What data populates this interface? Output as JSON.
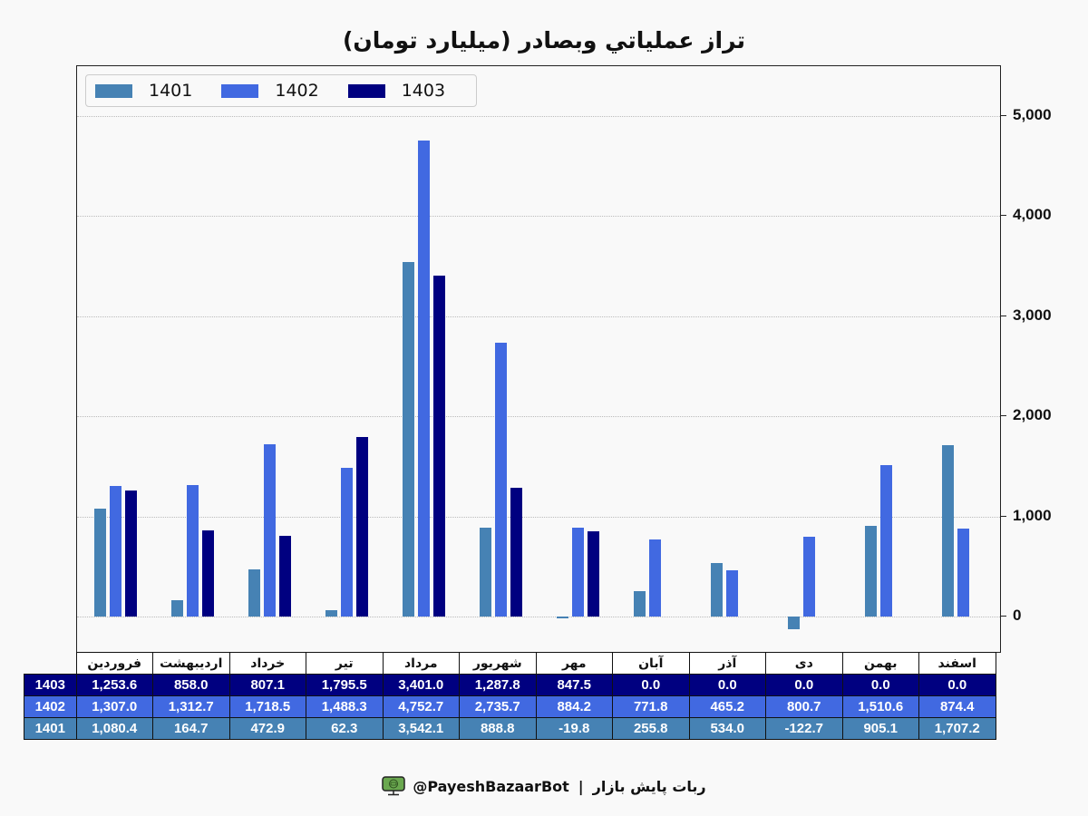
{
  "title": "تراز عملياتي وبصادر (ميليارد تومان)",
  "colors": {
    "1401": "#4682b4",
    "1402": "#4169e1",
    "1403": "#000080"
  },
  "legend": [
    {
      "label": "1401",
      "color": "#4682b4"
    },
    {
      "label": "1402",
      "color": "#4169e1"
    },
    {
      "label": "1403",
      "color": "#000080"
    }
  ],
  "yaxis": {
    "ticks": [
      "0",
      "1,000",
      "2,000",
      "3,000",
      "4,000",
      "5,000"
    ]
  },
  "table": {
    "months": [
      "فروردین",
      "اردیبهشت",
      "خرداد",
      "تیر",
      "مرداد",
      "شهریور",
      "مهر",
      "آبان",
      "آذر",
      "دی",
      "بهمن",
      "اسفند"
    ],
    "rows": [
      {
        "year": "1403",
        "values": [
          "1,253.6",
          "858.0",
          "807.1",
          "1,795.5",
          "3,401.0",
          "1,287.8",
          "847.5",
          "0.0",
          "0.0",
          "0.0",
          "0.0",
          "0.0"
        ]
      },
      {
        "year": "1402",
        "values": [
          "1,307.0",
          "1,312.7",
          "1,718.5",
          "1,488.3",
          "4,752.7",
          "2,735.7",
          "884.2",
          "771.8",
          "465.2",
          "800.7",
          "1,510.6",
          "874.4"
        ]
      },
      {
        "year": "1401",
        "values": [
          "1,080.4",
          "164.7",
          "472.9",
          "62.3",
          "3,542.1",
          "888.8",
          "-19.8",
          "255.8",
          "534.0",
          "-122.7",
          "905.1",
          "1,707.2"
        ]
      }
    ]
  },
  "footer": {
    "bot_name": "ربات پایش بازار",
    "separator": "|",
    "handle": "@PayeshBazaarBot",
    "icon": "monitor-icon"
  },
  "chart_data": {
    "type": "bar",
    "title": "تراز عملياتي وبصادر (ميليارد تومان)",
    "xlabel": "",
    "ylabel": "",
    "ylim": [
      -350,
      5500
    ],
    "yticks": [
      0,
      1000,
      2000,
      3000,
      4000,
      5000
    ],
    "grid": true,
    "legend_position": "upper left",
    "y_axis_side": "right",
    "categories": [
      "فروردین",
      "اردیبهشت",
      "خرداد",
      "تیر",
      "مرداد",
      "شهریور",
      "مهر",
      "آبان",
      "آذر",
      "دی",
      "بهمن",
      "اسفند"
    ],
    "series": [
      {
        "name": "1401",
        "color": "#4682b4",
        "values": [
          1080.4,
          164.7,
          472.9,
          62.3,
          3542.1,
          888.8,
          -19.8,
          255.8,
          534.0,
          -122.7,
          905.1,
          1707.2
        ]
      },
      {
        "name": "1402",
        "color": "#4169e1",
        "values": [
          1307.0,
          1312.7,
          1718.5,
          1488.3,
          4752.7,
          2735.7,
          884.2,
          771.8,
          465.2,
          800.7,
          1510.6,
          874.4
        ]
      },
      {
        "name": "1403",
        "color": "#000080",
        "values": [
          1253.6,
          858.0,
          807.1,
          1795.5,
          3401.0,
          1287.8,
          847.5,
          0.0,
          0.0,
          0.0,
          0.0,
          0.0
        ]
      }
    ]
  }
}
